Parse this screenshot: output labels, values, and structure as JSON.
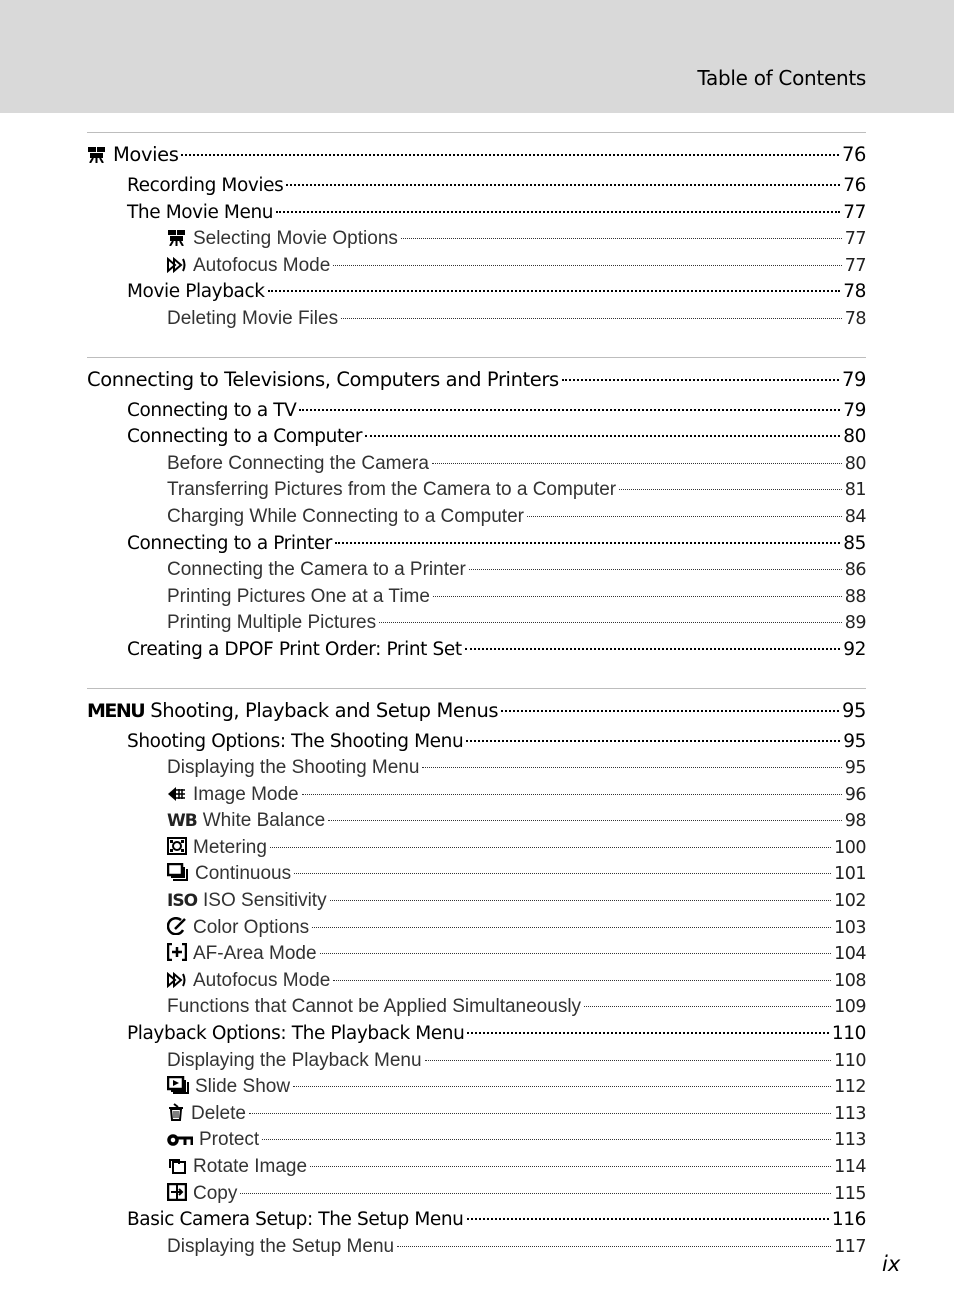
{
  "header": {
    "title": "Table of Contents"
  },
  "sections": [
    {
      "entries": [
        {
          "level": 1,
          "icon": "movie-icon",
          "label": "Movies",
          "page": "76"
        },
        {
          "level": 2,
          "label": "Recording Movies",
          "page": "76"
        },
        {
          "level": 2,
          "label": "The Movie Menu",
          "page": "77"
        },
        {
          "level": 3,
          "icon": "movie-icon",
          "label": "Selecting Movie Options",
          "page": "77"
        },
        {
          "level": 3,
          "icon": "autofocus-mode-icon",
          "label": "Autofocus Mode",
          "page": "77"
        },
        {
          "level": 2,
          "label": "Movie Playback",
          "page": "78"
        },
        {
          "level": 3,
          "label": "Deleting Movie Files",
          "page": "78"
        }
      ]
    },
    {
      "entries": [
        {
          "level": 1,
          "label": "Connecting to Televisions, Computers and Printers",
          "page": "79"
        },
        {
          "level": 2,
          "label": "Connecting to a TV",
          "page": "79"
        },
        {
          "level": 2,
          "label": "Connecting to a Computer",
          "page": "80"
        },
        {
          "level": 3,
          "label": "Before Connecting the Camera",
          "page": "80"
        },
        {
          "level": 3,
          "label": "Transferring Pictures from the Camera to a Computer",
          "page": "81"
        },
        {
          "level": 3,
          "label": "Charging While Connecting to a Computer",
          "page": "84"
        },
        {
          "level": 2,
          "label": "Connecting to a Printer",
          "page": "85"
        },
        {
          "level": 3,
          "label": "Connecting the Camera to a Printer",
          "page": "86"
        },
        {
          "level": 3,
          "label": "Printing Pictures One at a Time",
          "page": "88"
        },
        {
          "level": 3,
          "label": "Printing Multiple Pictures",
          "page": "89"
        },
        {
          "level": 2,
          "label": "Creating a DPOF Print Order: Print Set",
          "page": "92"
        }
      ]
    },
    {
      "entries": [
        {
          "level": 1,
          "icon": "menu-icon",
          "label": "Shooting, Playback and Setup Menus",
          "page": "95"
        },
        {
          "level": 2,
          "label": "Shooting Options: The Shooting Menu",
          "page": "95"
        },
        {
          "level": 3,
          "label": "Displaying the Shooting Menu",
          "page": "95"
        },
        {
          "level": 3,
          "icon": "image-mode-icon",
          "label": "Image Mode",
          "page": "96"
        },
        {
          "level": 3,
          "icon": "white-balance-icon",
          "label": "White Balance",
          "page": "98"
        },
        {
          "level": 3,
          "icon": "metering-icon",
          "label": "Metering",
          "page": "100"
        },
        {
          "level": 3,
          "icon": "continuous-icon",
          "label": "Continuous",
          "page": "101"
        },
        {
          "level": 3,
          "icon": "iso-sensitivity-icon",
          "label": "ISO Sensitivity",
          "page": "102"
        },
        {
          "level": 3,
          "icon": "color-options-icon",
          "label": "Color Options",
          "page": "103"
        },
        {
          "level": 3,
          "icon": "af-area-mode-icon",
          "label": "AF-Area Mode",
          "page": "104"
        },
        {
          "level": 3,
          "icon": "autofocus-mode-icon",
          "label": "Autofocus Mode",
          "page": "108"
        },
        {
          "level": 3,
          "label": "Functions that Cannot be Applied Simultaneously",
          "page": "109"
        },
        {
          "level": 2,
          "label": "Playback Options: The Playback Menu",
          "page": "110"
        },
        {
          "level": 3,
          "label": "Displaying the Playback Menu",
          "page": "110"
        },
        {
          "level": 3,
          "icon": "slide-show-icon",
          "label": "Slide Show",
          "page": "112"
        },
        {
          "level": 3,
          "icon": "delete-icon",
          "label": "Delete",
          "page": "113"
        },
        {
          "level": 3,
          "icon": "protect-icon",
          "label": "Protect",
          "page": "113"
        },
        {
          "level": 3,
          "icon": "rotate-image-icon",
          "label": "Rotate Image",
          "page": "114"
        },
        {
          "level": 3,
          "icon": "copy-icon",
          "label": "Copy",
          "page": "115"
        },
        {
          "level": 2,
          "label": "Basic Camera Setup: The Setup Menu",
          "page": "116"
        },
        {
          "level": 3,
          "label": "Displaying the Setup Menu",
          "page": "117"
        }
      ]
    }
  ],
  "footer": {
    "page_number": "ix"
  }
}
